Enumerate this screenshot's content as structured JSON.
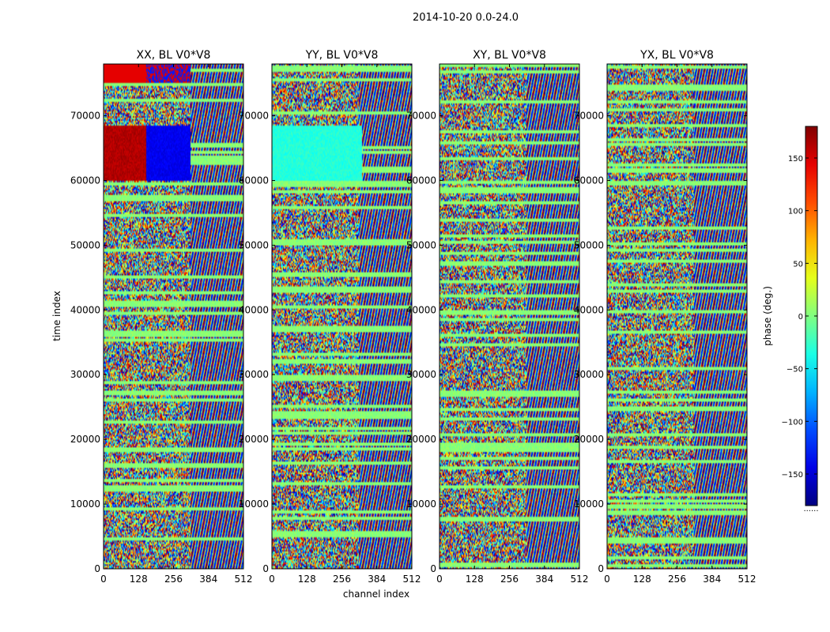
{
  "title": "2014-10-20 0.0-24.0",
  "chart_data": {
    "type": "heatmap",
    "title": "2014-10-20 0.0-24.0",
    "xlabel": "channel index",
    "ylabel": "time index",
    "xlim": [
      0,
      512
    ],
    "ylim": [
      0,
      78000
    ],
    "xticks": [
      0,
      128,
      256,
      384,
      512
    ],
    "yticks": [
      0,
      10000,
      20000,
      30000,
      40000,
      50000,
      60000,
      70000
    ],
    "panels": [
      {
        "title": "XX, BL V0*V8",
        "pol": "XX"
      },
      {
        "title": "YY, BL V0*V8",
        "pol": "YY"
      },
      {
        "title": "XY, BL V0*V8",
        "pol": "XY"
      },
      {
        "title": "YX, BL V0*V8",
        "pol": "YX"
      }
    ],
    "colorbar": {
      "label": "phase (deg.)",
      "range": [
        -180,
        180
      ],
      "ticks": [
        -150,
        -100,
        -50,
        0,
        50,
        100,
        150
      ],
      "colormap": "jet",
      "footnote": "......"
    }
  }
}
